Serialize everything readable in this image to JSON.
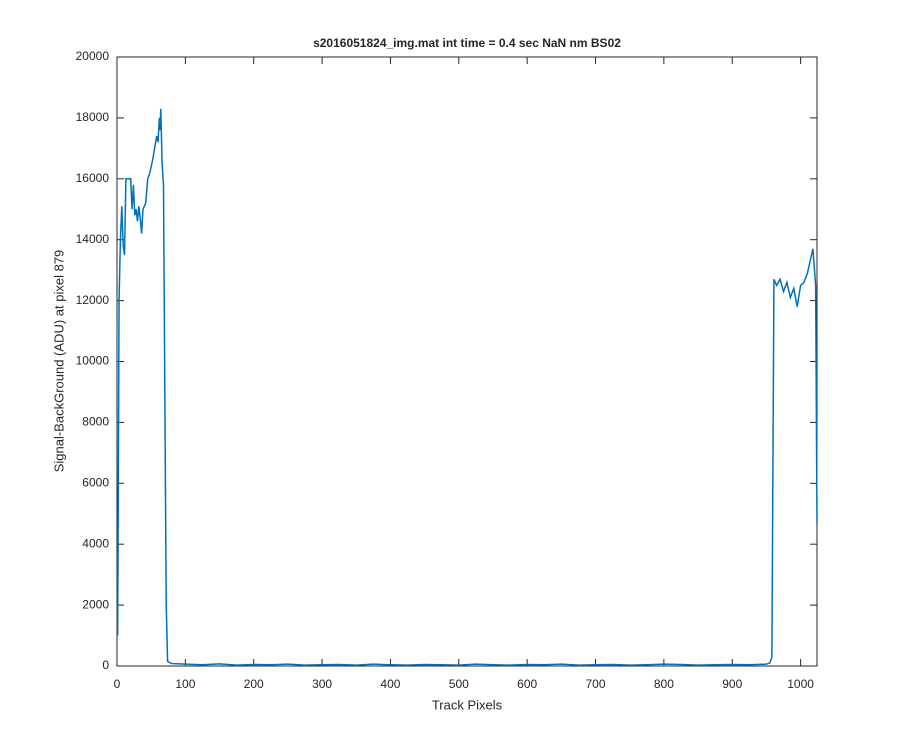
{
  "chart_data": {
    "type": "line",
    "title": "s2016051824_img.mat int time = 0.4 sec  NaN nm BS02",
    "x_label": "Track Pixels",
    "y_label": "Signal-BackGround (ADU) at pixel 879",
    "series": [
      {
        "color": "#0072bd",
        "x": [
          1,
          3,
          5,
          7,
          9,
          11,
          13,
          20,
          22,
          24,
          26,
          28,
          30,
          32,
          34,
          36,
          38,
          42,
          45,
          48,
          52,
          55,
          58,
          60,
          62,
          63,
          64,
          66,
          68,
          72,
          74,
          80,
          100,
          125,
          150,
          175,
          200,
          225,
          250,
          275,
          300,
          325,
          350,
          375,
          400,
          425,
          450,
          475,
          500,
          525,
          550,
          575,
          600,
          625,
          650,
          675,
          700,
          725,
          750,
          775,
          800,
          825,
          850,
          875,
          900,
          925,
          950,
          955,
          958,
          961,
          965,
          970,
          975,
          980,
          985,
          990,
          995,
          1000,
          1005,
          1010,
          1015,
          1018,
          1020,
          1022,
          1024
        ],
        "values": [
          1000,
          12000,
          14000,
          15100,
          13800,
          13500,
          16000,
          16000,
          15000,
          15800,
          14800,
          15000,
          14600,
          15100,
          14700,
          14200,
          15000,
          15200,
          16000,
          16200,
          16600,
          17000,
          17400,
          17200,
          18000,
          17600,
          18300,
          16500,
          15800,
          2000,
          150,
          80,
          60,
          40,
          70,
          30,
          50,
          40,
          60,
          30,
          40,
          50,
          30,
          60,
          40,
          30,
          50,
          40,
          30,
          60,
          40,
          30,
          50,
          40,
          60,
          30,
          40,
          50,
          30,
          40,
          60,
          50,
          30,
          40,
          50,
          40,
          60,
          100,
          300,
          12700,
          12500,
          12700,
          12300,
          12600,
          12100,
          12400,
          11800,
          12500,
          12600,
          12900,
          13400,
          13700,
          13100,
          12500,
          4700
        ]
      }
    ],
    "xlim": [
      0,
      1024
    ],
    "xticks": [
      0,
      100,
      200,
      300,
      400,
      500,
      600,
      700,
      800,
      900,
      1000
    ],
    "ylim": [
      0,
      20000
    ],
    "yticks": [
      0,
      2000,
      4000,
      6000,
      8000,
      10000,
      12000,
      14000,
      16000,
      18000,
      20000
    ],
    "grid": false
  }
}
